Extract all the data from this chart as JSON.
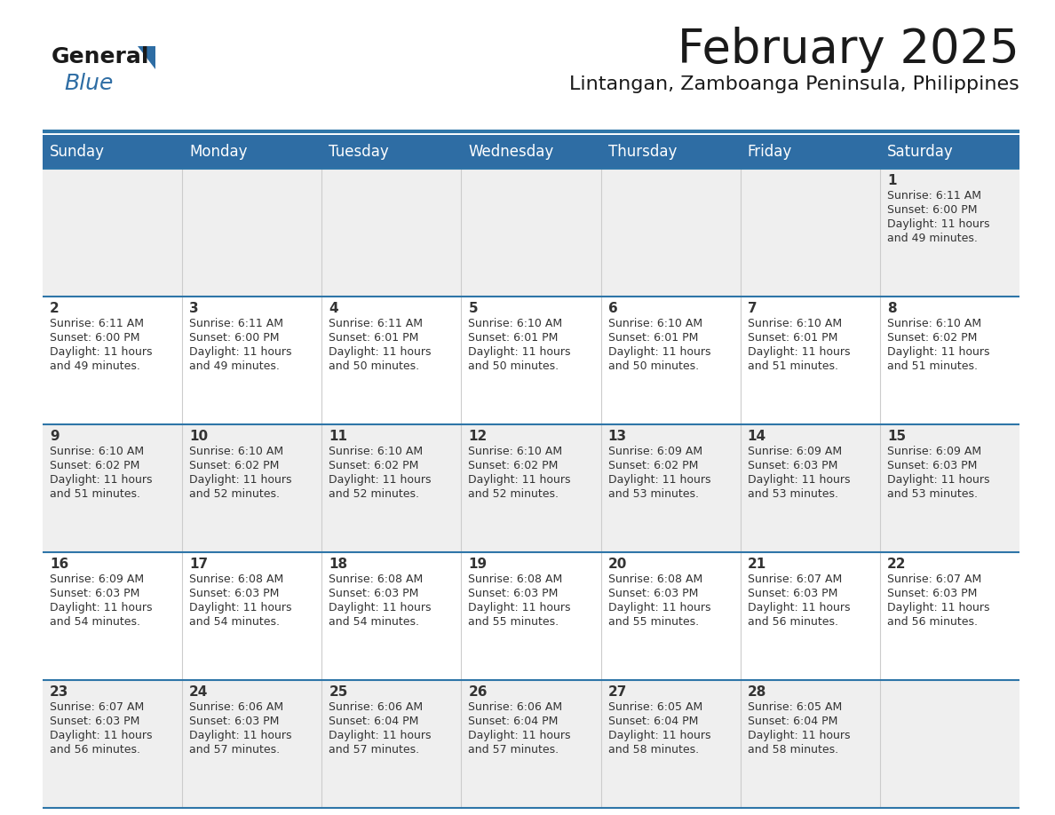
{
  "title": "February 2025",
  "subtitle": "Lintangan, Zamboanga Peninsula, Philippines",
  "header_bg": "#2E6DA4",
  "header_fg": "#FFFFFF",
  "cell_bg_odd": "#EFEFEF",
  "cell_bg_even": "#FFFFFF",
  "border_color": "#2E75A8",
  "text_color": "#333333",
  "day_num_color": "#333333",
  "day_headers": [
    "Sunday",
    "Monday",
    "Tuesday",
    "Wednesday",
    "Thursday",
    "Friday",
    "Saturday"
  ],
  "weeks": [
    [
      {
        "day": "",
        "lines": []
      },
      {
        "day": "",
        "lines": []
      },
      {
        "day": "",
        "lines": []
      },
      {
        "day": "",
        "lines": []
      },
      {
        "day": "",
        "lines": []
      },
      {
        "day": "",
        "lines": []
      },
      {
        "day": "1",
        "lines": [
          "Sunrise: 6:11 AM",
          "Sunset: 6:00 PM",
          "Daylight: 11 hours",
          "and 49 minutes."
        ]
      }
    ],
    [
      {
        "day": "2",
        "lines": [
          "Sunrise: 6:11 AM",
          "Sunset: 6:00 PM",
          "Daylight: 11 hours",
          "and 49 minutes."
        ]
      },
      {
        "day": "3",
        "lines": [
          "Sunrise: 6:11 AM",
          "Sunset: 6:00 PM",
          "Daylight: 11 hours",
          "and 49 minutes."
        ]
      },
      {
        "day": "4",
        "lines": [
          "Sunrise: 6:11 AM",
          "Sunset: 6:01 PM",
          "Daylight: 11 hours",
          "and 50 minutes."
        ]
      },
      {
        "day": "5",
        "lines": [
          "Sunrise: 6:10 AM",
          "Sunset: 6:01 PM",
          "Daylight: 11 hours",
          "and 50 minutes."
        ]
      },
      {
        "day": "6",
        "lines": [
          "Sunrise: 6:10 AM",
          "Sunset: 6:01 PM",
          "Daylight: 11 hours",
          "and 50 minutes."
        ]
      },
      {
        "day": "7",
        "lines": [
          "Sunrise: 6:10 AM",
          "Sunset: 6:01 PM",
          "Daylight: 11 hours",
          "and 51 minutes."
        ]
      },
      {
        "day": "8",
        "lines": [
          "Sunrise: 6:10 AM",
          "Sunset: 6:02 PM",
          "Daylight: 11 hours",
          "and 51 minutes."
        ]
      }
    ],
    [
      {
        "day": "9",
        "lines": [
          "Sunrise: 6:10 AM",
          "Sunset: 6:02 PM",
          "Daylight: 11 hours",
          "and 51 minutes."
        ]
      },
      {
        "day": "10",
        "lines": [
          "Sunrise: 6:10 AM",
          "Sunset: 6:02 PM",
          "Daylight: 11 hours",
          "and 52 minutes."
        ]
      },
      {
        "day": "11",
        "lines": [
          "Sunrise: 6:10 AM",
          "Sunset: 6:02 PM",
          "Daylight: 11 hours",
          "and 52 minutes."
        ]
      },
      {
        "day": "12",
        "lines": [
          "Sunrise: 6:10 AM",
          "Sunset: 6:02 PM",
          "Daylight: 11 hours",
          "and 52 minutes."
        ]
      },
      {
        "day": "13",
        "lines": [
          "Sunrise: 6:09 AM",
          "Sunset: 6:02 PM",
          "Daylight: 11 hours",
          "and 53 minutes."
        ]
      },
      {
        "day": "14",
        "lines": [
          "Sunrise: 6:09 AM",
          "Sunset: 6:03 PM",
          "Daylight: 11 hours",
          "and 53 minutes."
        ]
      },
      {
        "day": "15",
        "lines": [
          "Sunrise: 6:09 AM",
          "Sunset: 6:03 PM",
          "Daylight: 11 hours",
          "and 53 minutes."
        ]
      }
    ],
    [
      {
        "day": "16",
        "lines": [
          "Sunrise: 6:09 AM",
          "Sunset: 6:03 PM",
          "Daylight: 11 hours",
          "and 54 minutes."
        ]
      },
      {
        "day": "17",
        "lines": [
          "Sunrise: 6:08 AM",
          "Sunset: 6:03 PM",
          "Daylight: 11 hours",
          "and 54 minutes."
        ]
      },
      {
        "day": "18",
        "lines": [
          "Sunrise: 6:08 AM",
          "Sunset: 6:03 PM",
          "Daylight: 11 hours",
          "and 54 minutes."
        ]
      },
      {
        "day": "19",
        "lines": [
          "Sunrise: 6:08 AM",
          "Sunset: 6:03 PM",
          "Daylight: 11 hours",
          "and 55 minutes."
        ]
      },
      {
        "day": "20",
        "lines": [
          "Sunrise: 6:08 AM",
          "Sunset: 6:03 PM",
          "Daylight: 11 hours",
          "and 55 minutes."
        ]
      },
      {
        "day": "21",
        "lines": [
          "Sunrise: 6:07 AM",
          "Sunset: 6:03 PM",
          "Daylight: 11 hours",
          "and 56 minutes."
        ]
      },
      {
        "day": "22",
        "lines": [
          "Sunrise: 6:07 AM",
          "Sunset: 6:03 PM",
          "Daylight: 11 hours",
          "and 56 minutes."
        ]
      }
    ],
    [
      {
        "day": "23",
        "lines": [
          "Sunrise: 6:07 AM",
          "Sunset: 6:03 PM",
          "Daylight: 11 hours",
          "and 56 minutes."
        ]
      },
      {
        "day": "24",
        "lines": [
          "Sunrise: 6:06 AM",
          "Sunset: 6:03 PM",
          "Daylight: 11 hours",
          "and 57 minutes."
        ]
      },
      {
        "day": "25",
        "lines": [
          "Sunrise: 6:06 AM",
          "Sunset: 6:04 PM",
          "Daylight: 11 hours",
          "and 57 minutes."
        ]
      },
      {
        "day": "26",
        "lines": [
          "Sunrise: 6:06 AM",
          "Sunset: 6:04 PM",
          "Daylight: 11 hours",
          "and 57 minutes."
        ]
      },
      {
        "day": "27",
        "lines": [
          "Sunrise: 6:05 AM",
          "Sunset: 6:04 PM",
          "Daylight: 11 hours",
          "and 58 minutes."
        ]
      },
      {
        "day": "28",
        "lines": [
          "Sunrise: 6:05 AM",
          "Sunset: 6:04 PM",
          "Daylight: 11 hours",
          "and 58 minutes."
        ]
      },
      {
        "day": "",
        "lines": []
      }
    ]
  ],
  "logo_general_color": "#1a1a1a",
  "logo_blue_color": "#2E6DA4",
  "logo_triangle_color": "#2E6DA4",
  "title_fontsize": 38,
  "subtitle_fontsize": 16,
  "header_fontsize": 12,
  "day_num_fontsize": 11,
  "cell_text_fontsize": 9
}
